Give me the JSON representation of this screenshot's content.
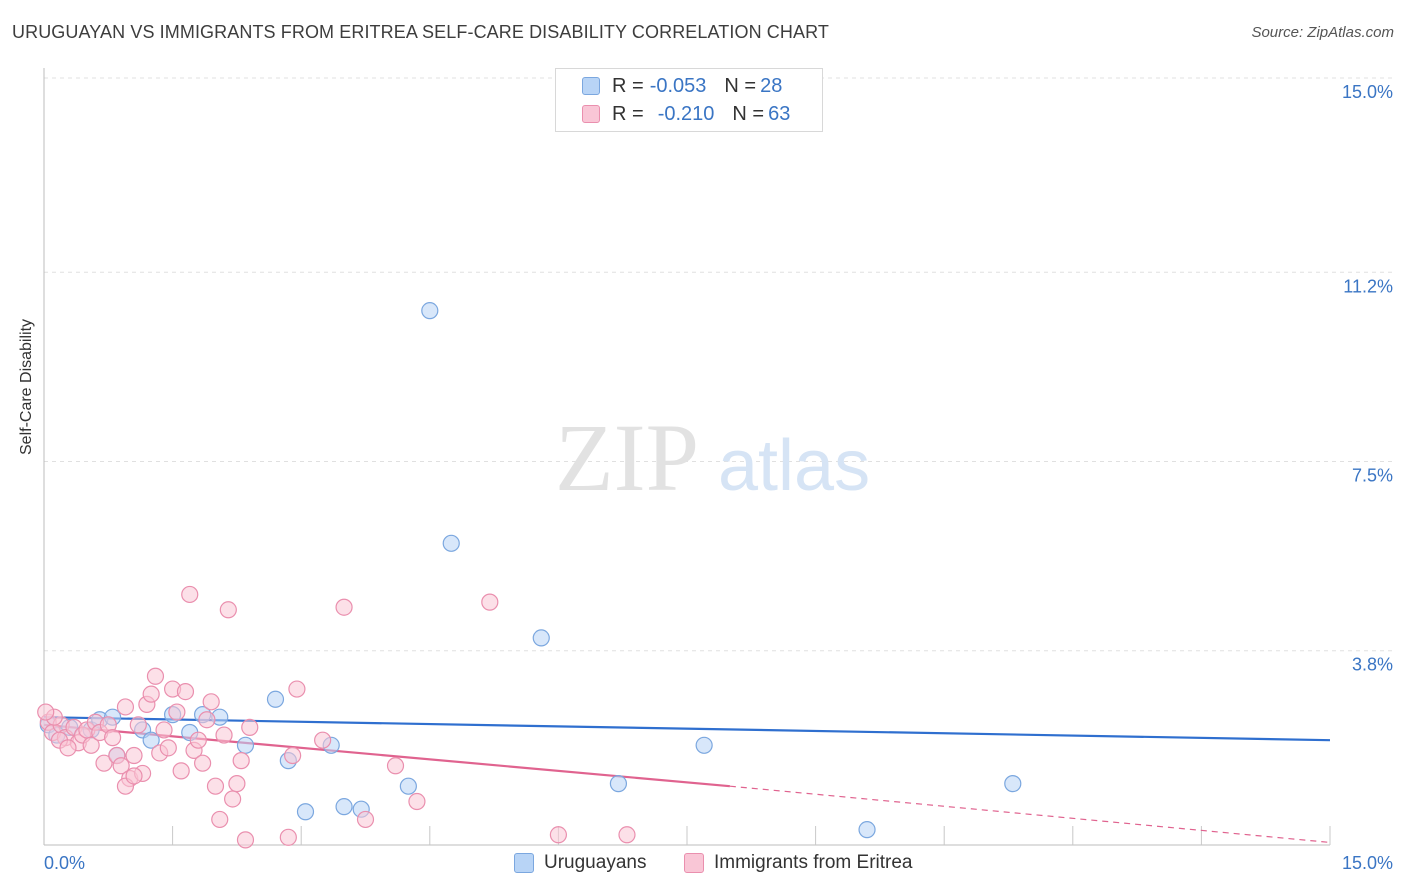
{
  "title": "URUGUAYAN VS IMMIGRANTS FROM ERITREA SELF-CARE DISABILITY CORRELATION CHART",
  "source": "Source: ZipAtlas.com",
  "watermark": {
    "zip": "ZIP",
    "atlas": "atlas"
  },
  "legend": {
    "rows": [
      {
        "r_label": "R = ",
        "r_value": "-0.053",
        "n_label": "N = ",
        "n_value": "28"
      },
      {
        "r_label": "R = ",
        "r_value": "-0.210",
        "n_label": "N = ",
        "n_value": "63"
      }
    ],
    "series_names": [
      "Uruguayans",
      "Immigrants from Eritrea"
    ]
  },
  "colors": {
    "blue_fill": "#b8d4f6",
    "blue_stroke": "#7ba7df",
    "blue_line": "#2f6fcf",
    "pink_fill": "#f9c6d6",
    "pink_stroke": "#ea8fae",
    "pink_line": "#e0638f",
    "tick_label": "#3a75c4",
    "grid": "#e0e0e0"
  },
  "chart_data": {
    "type": "scatter",
    "xlabel": "",
    "ylabel": "Self-Care Disability",
    "xlim": [
      0,
      15
    ],
    "ylim": [
      0,
      15
    ],
    "x_tick_labels": [
      "0.0%",
      "15.0%"
    ],
    "y_ticks": [
      3.8,
      7.5,
      11.2,
      15.0
    ],
    "y_tick_labels": [
      "3.8%",
      "7.5%",
      "11.2%",
      "15.0%"
    ],
    "grid": true,
    "legend_position": "top-center",
    "series": [
      {
        "name": "Uruguayans",
        "color": "#7ba7df",
        "points": [
          [
            0.05,
            2.35
          ],
          [
            0.3,
            2.3
          ],
          [
            0.55,
            2.25
          ],
          [
            0.65,
            2.45
          ],
          [
            0.85,
            1.75
          ],
          [
            0.8,
            2.5
          ],
          [
            1.15,
            2.25
          ],
          [
            1.5,
            2.55
          ],
          [
            1.7,
            2.2
          ],
          [
            1.85,
            2.55
          ],
          [
            2.05,
            2.5
          ],
          [
            2.35,
            1.95
          ],
          [
            2.7,
            2.85
          ],
          [
            2.85,
            1.65
          ],
          [
            3.05,
            0.65
          ],
          [
            3.35,
            1.95
          ],
          [
            3.5,
            0.75
          ],
          [
            3.7,
            0.7
          ],
          [
            4.25,
            1.15
          ],
          [
            4.5,
            10.45
          ],
          [
            4.75,
            5.9
          ],
          [
            5.8,
            4.05
          ],
          [
            6.7,
            1.2
          ],
          [
            7.7,
            1.95
          ],
          [
            9.6,
            0.3
          ],
          [
            11.3,
            1.2
          ],
          [
            0.15,
            2.15
          ],
          [
            1.25,
            2.05
          ]
        ],
        "trend": {
          "x": [
            0,
            15
          ],
          "y": [
            2.5,
            2.05
          ]
        }
      },
      {
        "name": "Immigrants from Eritrea",
        "color": "#ea8fae",
        "points": [
          [
            0.05,
            2.4
          ],
          [
            0.1,
            2.2
          ],
          [
            0.2,
            2.35
          ],
          [
            0.25,
            2.1
          ],
          [
            0.35,
            2.3
          ],
          [
            0.4,
            2.0
          ],
          [
            0.45,
            2.15
          ],
          [
            0.5,
            2.25
          ],
          [
            0.55,
            1.95
          ],
          [
            0.6,
            2.4
          ],
          [
            0.65,
            2.2
          ],
          [
            0.7,
            1.6
          ],
          [
            0.75,
            2.35
          ],
          [
            0.8,
            2.1
          ],
          [
            0.85,
            1.75
          ],
          [
            0.9,
            1.55
          ],
          [
            0.95,
            2.7
          ],
          [
            1.0,
            1.3
          ],
          [
            1.05,
            1.75
          ],
          [
            1.1,
            2.35
          ],
          [
            1.15,
            1.4
          ],
          [
            1.2,
            2.75
          ],
          [
            1.25,
            2.95
          ],
          [
            1.3,
            3.3
          ],
          [
            1.35,
            1.8
          ],
          [
            1.4,
            2.25
          ],
          [
            1.45,
            1.9
          ],
          [
            1.5,
            3.05
          ],
          [
            1.55,
            2.6
          ],
          [
            1.6,
            1.45
          ],
          [
            1.65,
            3.0
          ],
          [
            1.7,
            4.9
          ],
          [
            1.75,
            1.85
          ],
          [
            1.8,
            2.05
          ],
          [
            1.85,
            1.6
          ],
          [
            1.9,
            2.45
          ],
          [
            1.95,
            2.8
          ],
          [
            2.0,
            1.15
          ],
          [
            2.05,
            0.5
          ],
          [
            2.1,
            2.15
          ],
          [
            2.15,
            4.6
          ],
          [
            2.2,
            0.9
          ],
          [
            2.25,
            1.2
          ],
          [
            2.3,
            1.65
          ],
          [
            2.35,
            0.1
          ],
          [
            2.4,
            2.3
          ],
          [
            2.85,
            0.15
          ],
          [
            2.9,
            1.75
          ],
          [
            2.95,
            3.05
          ],
          [
            3.25,
            2.05
          ],
          [
            3.5,
            4.65
          ],
          [
            3.75,
            0.5
          ],
          [
            4.1,
            1.55
          ],
          [
            4.35,
            0.85
          ],
          [
            5.2,
            4.75
          ],
          [
            6.0,
            0.2
          ],
          [
            6.8,
            0.2
          ],
          [
            0.12,
            2.5
          ],
          [
            0.18,
            2.05
          ],
          [
            0.28,
            1.9
          ],
          [
            0.95,
            1.15
          ],
          [
            1.05,
            1.35
          ],
          [
            0.02,
            2.6
          ]
        ],
        "trend": {
          "x": [
            0,
            8.0
          ],
          "y": [
            2.35,
            1.15
          ]
        },
        "trend_dashed": {
          "x": [
            8.0,
            15
          ],
          "y": [
            1.15,
            0.05
          ]
        }
      }
    ]
  }
}
